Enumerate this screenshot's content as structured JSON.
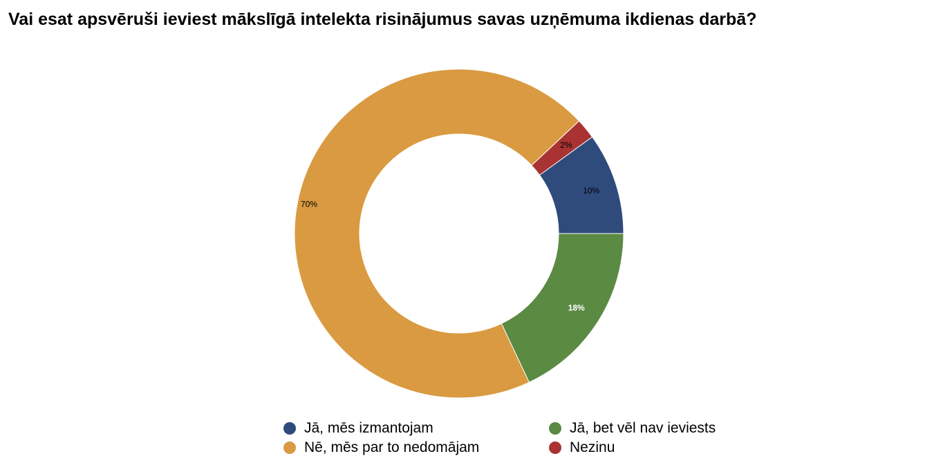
{
  "chart_data": {
    "type": "pie",
    "title": "Vai esat apsvēruši ieviest mākslīgā intelekta risinājumus savas uzņēmuma ikdienas darbā?",
    "donut": true,
    "legend_position": "bottom",
    "slices": [
      {
        "label": "Jā, mēs izmantojam",
        "value": 10,
        "value_label": "10%",
        "color": "#2f4b7c",
        "label_color": "#000000"
      },
      {
        "label": "Jā, bet vēl nav ieviests",
        "value": 18,
        "value_label": "18%",
        "color": "#5b8a43",
        "label_color": "#ffffff"
      },
      {
        "label": "Nē, mēs par to nedomājam",
        "value": 70,
        "value_label": "70%",
        "color": "#d99a41",
        "label_color": "#000000"
      },
      {
        "label": "Nezinu",
        "value": 2,
        "value_label": "2%",
        "color": "#a93333",
        "label_color": "#000000"
      }
    ],
    "legend_order": [
      0,
      1,
      2,
      3
    ]
  }
}
